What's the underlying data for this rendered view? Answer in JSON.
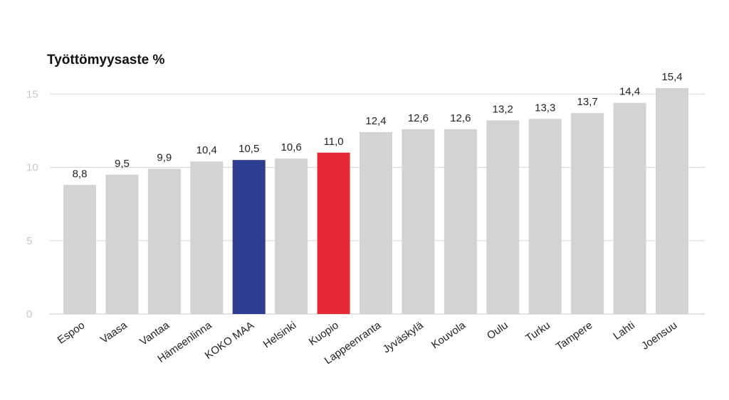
{
  "chart_data": {
    "type": "bar",
    "title": "Työttömyysaste %",
    "xlabel": "",
    "ylabel": "",
    "ylim": [
      0,
      15.4
    ],
    "yticks": [
      0,
      5,
      10,
      15
    ],
    "grid": true,
    "categories": [
      "Espoo",
      "Vaasa",
      "Vantaa",
      "Hämeenlinna",
      "KOKO MAA",
      "Helsinki",
      "Kuopio",
      "Lappeenranta",
      "Jyväskylä",
      "Kouvola",
      "Oulu",
      "Turku",
      "Tampere",
      "Lahti",
      "Joensuu"
    ],
    "values": [
      8.8,
      9.5,
      9.9,
      10.4,
      10.5,
      10.6,
      11.0,
      12.4,
      12.6,
      12.6,
      13.2,
      13.3,
      13.7,
      14.4,
      15.4
    ],
    "value_labels": [
      "8,8",
      "9,5",
      "9,9",
      "10,4",
      "10,5",
      "10,6",
      "11,0",
      "12,4",
      "12,6",
      "12,6",
      "13,2",
      "13,3",
      "13,7",
      "14,4",
      "15,4"
    ],
    "colors": {
      "default": "#d3d3d3",
      "highlights": {
        "KOKO MAA": "#2e3d8f",
        "Kuopio": "#e52a36"
      },
      "grid": "#d7d7d7",
      "axis": "#c8c8c8"
    }
  }
}
